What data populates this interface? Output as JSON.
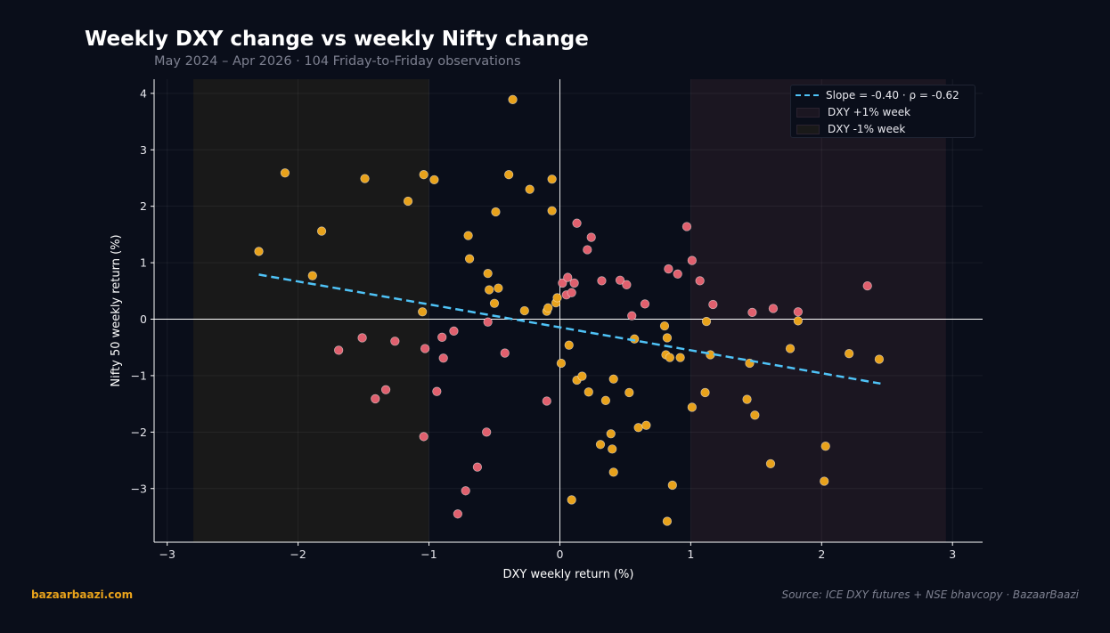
{
  "title": "Weekly DXY change vs weekly Nifty change",
  "subtitle": "May 2024 – Apr 2026  ·  104 Friday-to-Friday observations",
  "footer": {
    "brand": "bazaarbaazi.com",
    "source": "Source: ICE DXY futures + NSE bhavcopy  ·  BazaarBaazi"
  },
  "colors": {
    "background": "#0a0e1a",
    "up_week_point": "#e8a21b",
    "down_week_point": "#e0606e",
    "regression_line": "#4fc3f7",
    "dxy_up_band": "#1b1621",
    "dxy_down_band": "#191919"
  },
  "legend": {
    "regression": "Slope = -0.40  ·  ρ = -0.62",
    "dxy_up": "DXY +1% week",
    "dxy_down": "DXY -1% week"
  },
  "chart_data": {
    "type": "scatter",
    "xlabel": "DXY weekly return (%)",
    "ylabel": "Nifty 50 weekly return (%)",
    "xlim": [
      -3.1,
      3.23
    ],
    "ylim": [
      -3.95,
      4.25
    ],
    "xticks": [
      -3,
      -2,
      -1,
      0,
      1,
      2,
      3
    ],
    "yticks": [
      -3,
      -2,
      -1,
      0,
      1,
      2,
      3,
      4
    ],
    "tick_labels": {
      "x": [
        "−3",
        "−2",
        "−1",
        "0",
        "1",
        "2",
        "3"
      ],
      "y": [
        "−3",
        "−2",
        "−1",
        "0",
        "1",
        "2",
        "3",
        "4"
      ]
    },
    "grid": true,
    "legend_position": "top-right",
    "shaded_regions": [
      {
        "name": "DXY -1% week",
        "x_range": [
          -2.8,
          -1.0
        ]
      },
      {
        "name": "DXY +1% week",
        "x_range": [
          1.0,
          2.95
        ]
      }
    ],
    "regression": {
      "slope": -0.4,
      "rho": -0.62,
      "x_range": [
        -2.3,
        2.45
      ],
      "y_start": 0.79,
      "y_end": -1.14
    },
    "points": [
      {
        "x": -2.3,
        "y": 1.2,
        "c": "orange"
      },
      {
        "x": -2.1,
        "y": 2.59,
        "c": "orange"
      },
      {
        "x": -1.89,
        "y": 0.77,
        "c": "orange"
      },
      {
        "x": -1.82,
        "y": 1.56,
        "c": "orange"
      },
      {
        "x": -1.69,
        "y": -0.55,
        "c": "red"
      },
      {
        "x": -1.51,
        "y": -0.33,
        "c": "red"
      },
      {
        "x": -1.49,
        "y": 2.49,
        "c": "orange"
      },
      {
        "x": -1.41,
        "y": -1.41,
        "c": "red"
      },
      {
        "x": -1.33,
        "y": -1.25,
        "c": "red"
      },
      {
        "x": -1.26,
        "y": -0.39,
        "c": "red"
      },
      {
        "x": -1.16,
        "y": 2.09,
        "c": "orange"
      },
      {
        "x": -1.05,
        "y": 0.13,
        "c": "orange"
      },
      {
        "x": -1.04,
        "y": 2.56,
        "c": "orange"
      },
      {
        "x": -1.03,
        "y": -0.52,
        "c": "red"
      },
      {
        "x": -1.04,
        "y": -2.08,
        "c": "red"
      },
      {
        "x": -0.96,
        "y": 2.47,
        "c": "orange"
      },
      {
        "x": -0.94,
        "y": -1.28,
        "c": "red"
      },
      {
        "x": -0.9,
        "y": -0.32,
        "c": "red"
      },
      {
        "x": -0.89,
        "y": -0.69,
        "c": "red"
      },
      {
        "x": -0.81,
        "y": -0.21,
        "c": "red"
      },
      {
        "x": -0.78,
        "y": -3.45,
        "c": "red"
      },
      {
        "x": -0.72,
        "y": -3.04,
        "c": "red"
      },
      {
        "x": -0.7,
        "y": 1.48,
        "c": "orange"
      },
      {
        "x": -0.69,
        "y": 1.07,
        "c": "orange"
      },
      {
        "x": -0.63,
        "y": -2.62,
        "c": "red"
      },
      {
        "x": -0.56,
        "y": -2.0,
        "c": "red"
      },
      {
        "x": -0.55,
        "y": -0.05,
        "c": "red"
      },
      {
        "x": -0.55,
        "y": 0.81,
        "c": "orange"
      },
      {
        "x": -0.54,
        "y": 0.52,
        "c": "orange"
      },
      {
        "x": -0.5,
        "y": 0.28,
        "c": "orange"
      },
      {
        "x": -0.49,
        "y": 1.9,
        "c": "orange"
      },
      {
        "x": -0.47,
        "y": 0.55,
        "c": "orange"
      },
      {
        "x": -0.42,
        "y": -0.6,
        "c": "red"
      },
      {
        "x": -0.39,
        "y": 2.56,
        "c": "orange"
      },
      {
        "x": -0.36,
        "y": 3.89,
        "c": "orange"
      },
      {
        "x": -0.27,
        "y": 0.15,
        "c": "orange"
      },
      {
        "x": -0.23,
        "y": 2.3,
        "c": "orange"
      },
      {
        "x": -0.1,
        "y": -1.45,
        "c": "red"
      },
      {
        "x": -0.1,
        "y": 0.14,
        "c": "orange"
      },
      {
        "x": -0.09,
        "y": 0.2,
        "c": "orange"
      },
      {
        "x": -0.06,
        "y": 2.48,
        "c": "orange"
      },
      {
        "x": -0.06,
        "y": 1.92,
        "c": "orange"
      },
      {
        "x": -0.03,
        "y": 0.29,
        "c": "orange"
      },
      {
        "x": -0.02,
        "y": 0.38,
        "c": "orange"
      },
      {
        "x": 0.01,
        "y": -0.78,
        "c": "orange"
      },
      {
        "x": 0.02,
        "y": 0.64,
        "c": "red"
      },
      {
        "x": 0.05,
        "y": 0.43,
        "c": "red"
      },
      {
        "x": 0.06,
        "y": 0.74,
        "c": "red"
      },
      {
        "x": 0.07,
        "y": -0.46,
        "c": "orange"
      },
      {
        "x": 0.09,
        "y": -3.2,
        "c": "orange"
      },
      {
        "x": 0.09,
        "y": 0.47,
        "c": "red"
      },
      {
        "x": 0.11,
        "y": 0.64,
        "c": "red"
      },
      {
        "x": 0.13,
        "y": 1.7,
        "c": "red"
      },
      {
        "x": 0.13,
        "y": -1.08,
        "c": "orange"
      },
      {
        "x": 0.17,
        "y": -1.01,
        "c": "orange"
      },
      {
        "x": 0.21,
        "y": 1.23,
        "c": "red"
      },
      {
        "x": 0.22,
        "y": -1.29,
        "c": "orange"
      },
      {
        "x": 0.24,
        "y": 1.45,
        "c": "red"
      },
      {
        "x": 0.31,
        "y": -2.22,
        "c": "orange"
      },
      {
        "x": 0.32,
        "y": 0.68,
        "c": "red"
      },
      {
        "x": 0.35,
        "y": -1.44,
        "c": "orange"
      },
      {
        "x": 0.39,
        "y": -2.03,
        "c": "orange"
      },
      {
        "x": 0.4,
        "y": -2.3,
        "c": "orange"
      },
      {
        "x": 0.41,
        "y": -1.06,
        "c": "orange"
      },
      {
        "x": 0.41,
        "y": -2.71,
        "c": "orange"
      },
      {
        "x": 0.46,
        "y": 0.69,
        "c": "red"
      },
      {
        "x": 0.51,
        "y": 0.61,
        "c": "red"
      },
      {
        "x": 0.53,
        "y": -1.3,
        "c": "orange"
      },
      {
        "x": 0.55,
        "y": 0.06,
        "c": "red"
      },
      {
        "x": 0.57,
        "y": -0.35,
        "c": "orange"
      },
      {
        "x": 0.6,
        "y": -1.92,
        "c": "orange"
      },
      {
        "x": 0.65,
        "y": 0.27,
        "c": "red"
      },
      {
        "x": 0.66,
        "y": -1.88,
        "c": "orange"
      },
      {
        "x": 0.8,
        "y": -0.12,
        "c": "orange"
      },
      {
        "x": 0.81,
        "y": -0.63,
        "c": "orange"
      },
      {
        "x": 0.82,
        "y": -0.33,
        "c": "orange"
      },
      {
        "x": 0.82,
        "y": -3.58,
        "c": "orange"
      },
      {
        "x": 0.83,
        "y": 0.89,
        "c": "red"
      },
      {
        "x": 0.84,
        "y": -0.68,
        "c": "orange"
      },
      {
        "x": 0.86,
        "y": -2.94,
        "c": "orange"
      },
      {
        "x": 0.9,
        "y": 0.8,
        "c": "red"
      },
      {
        "x": 0.92,
        "y": -0.68,
        "c": "orange"
      },
      {
        "x": 0.97,
        "y": 1.64,
        "c": "red"
      },
      {
        "x": 1.01,
        "y": 1.04,
        "c": "red"
      },
      {
        "x": 1.01,
        "y": -1.56,
        "c": "orange"
      },
      {
        "x": 1.07,
        "y": 0.68,
        "c": "red"
      },
      {
        "x": 1.11,
        "y": -1.3,
        "c": "orange"
      },
      {
        "x": 1.12,
        "y": -0.04,
        "c": "orange"
      },
      {
        "x": 1.15,
        "y": -0.63,
        "c": "orange"
      },
      {
        "x": 1.17,
        "y": 0.26,
        "c": "red"
      },
      {
        "x": 1.43,
        "y": -1.42,
        "c": "orange"
      },
      {
        "x": 1.45,
        "y": -0.78,
        "c": "orange"
      },
      {
        "x": 1.47,
        "y": 0.12,
        "c": "red"
      },
      {
        "x": 1.49,
        "y": -1.7,
        "c": "orange"
      },
      {
        "x": 1.61,
        "y": -2.56,
        "c": "orange"
      },
      {
        "x": 1.63,
        "y": 0.19,
        "c": "red"
      },
      {
        "x": 1.76,
        "y": -0.52,
        "c": "orange"
      },
      {
        "x": 1.82,
        "y": 0.13,
        "c": "red"
      },
      {
        "x": 1.82,
        "y": -0.03,
        "c": "orange"
      },
      {
        "x": 2.02,
        "y": -2.87,
        "c": "orange"
      },
      {
        "x": 2.03,
        "y": -2.25,
        "c": "orange"
      },
      {
        "x": 2.21,
        "y": -0.61,
        "c": "orange"
      },
      {
        "x": 2.35,
        "y": 0.59,
        "c": "red"
      },
      {
        "x": 2.44,
        "y": -0.71,
        "c": "orange"
      }
    ]
  }
}
